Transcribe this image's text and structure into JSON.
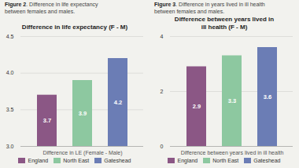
{
  "chart_data": [
    {
      "type": "bar",
      "caption": "Figure 2. Difference in life expectancy\nbetween females and males.",
      "title": "Difference in life expectancy (F - M)",
      "xlabel": "Difference in LE (Female - Male)",
      "categories": [
        "England",
        "North East",
        "Gateshead"
      ],
      "values": [
        3.7,
        3.9,
        4.2
      ],
      "colors": [
        "#8B5785",
        "#8DC8A0",
        "#6B7DB5"
      ],
      "ylim": [
        3.0,
        4.5
      ],
      "yticks": [
        {
          "value": 3.0,
          "label": "3.0"
        },
        3.5,
        {
          "value": 4.0,
          "label": "4.0"
        },
        4.5
      ],
      "grid": true,
      "data_labels": true,
      "tick_labels": "y",
      "legend": "bottom"
    },
    {
      "type": "bar",
      "caption": "Figure 3. Difference in years lived in ill health\nbetween females and males.",
      "title": "Difference between years lived in\nill health (F - M)",
      "xlabel": "Difference between years lived in ill health",
      "categories": [
        "England",
        "North East",
        "Gateshead"
      ],
      "values": [
        2.9,
        3.3,
        3.6
      ],
      "colors": [
        "#8B5785",
        "#8DC8A0",
        "#6B7DB5"
      ],
      "ylim": [
        0,
        4
      ],
      "yticks": [
        0,
        2,
        4
      ],
      "grid": true,
      "data_labels": true,
      "tick_labels": "y",
      "legend": "bottom"
    }
  ]
}
